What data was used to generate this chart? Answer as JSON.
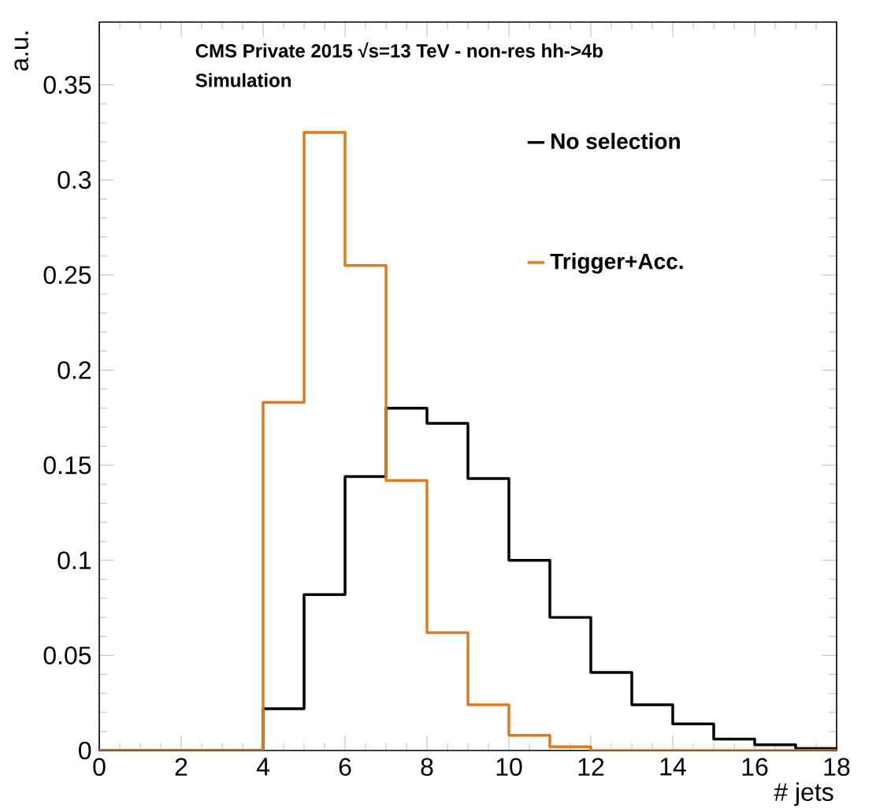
{
  "chart_data": {
    "type": "histogram",
    "title": "CMS Private 2015  √s=13 TeV - non-res hh->4b",
    "subtitle": "Simulation",
    "xlabel": "# jets",
    "ylabel": "a.u.",
    "bins": [
      0,
      1,
      2,
      3,
      4,
      5,
      6,
      7,
      8,
      9,
      10,
      11,
      12,
      13,
      14,
      15,
      16,
      17,
      18
    ],
    "series": [
      {
        "name": "No selection",
        "color": "#000000",
        "values": [
          0,
          0,
          0,
          0,
          0.022,
          0.082,
          0.144,
          0.18,
          0.172,
          0.143,
          0.1,
          0.07,
          0.041,
          0.024,
          0.014,
          0.006,
          0.003,
          0.001
        ]
      },
      {
        "name": "Trigger+Acc.",
        "color": "#dd7a1c",
        "values": [
          0,
          0,
          0,
          0,
          0.183,
          0.325,
          0.255,
          0.142,
          0.062,
          0.024,
          0.008,
          0.002,
          0,
          0,
          0,
          0,
          0,
          0
        ]
      }
    ],
    "xlim": [
      0,
      18
    ],
    "ylim": [
      0,
      0.383
    ],
    "xticks": [
      0,
      2,
      4,
      6,
      8,
      10,
      12,
      14,
      16,
      18
    ],
    "yticks": [
      0,
      0.05,
      0.1,
      0.15,
      0.2,
      0.25,
      0.3,
      0.35
    ],
    "grid": false,
    "legend": "top right"
  }
}
